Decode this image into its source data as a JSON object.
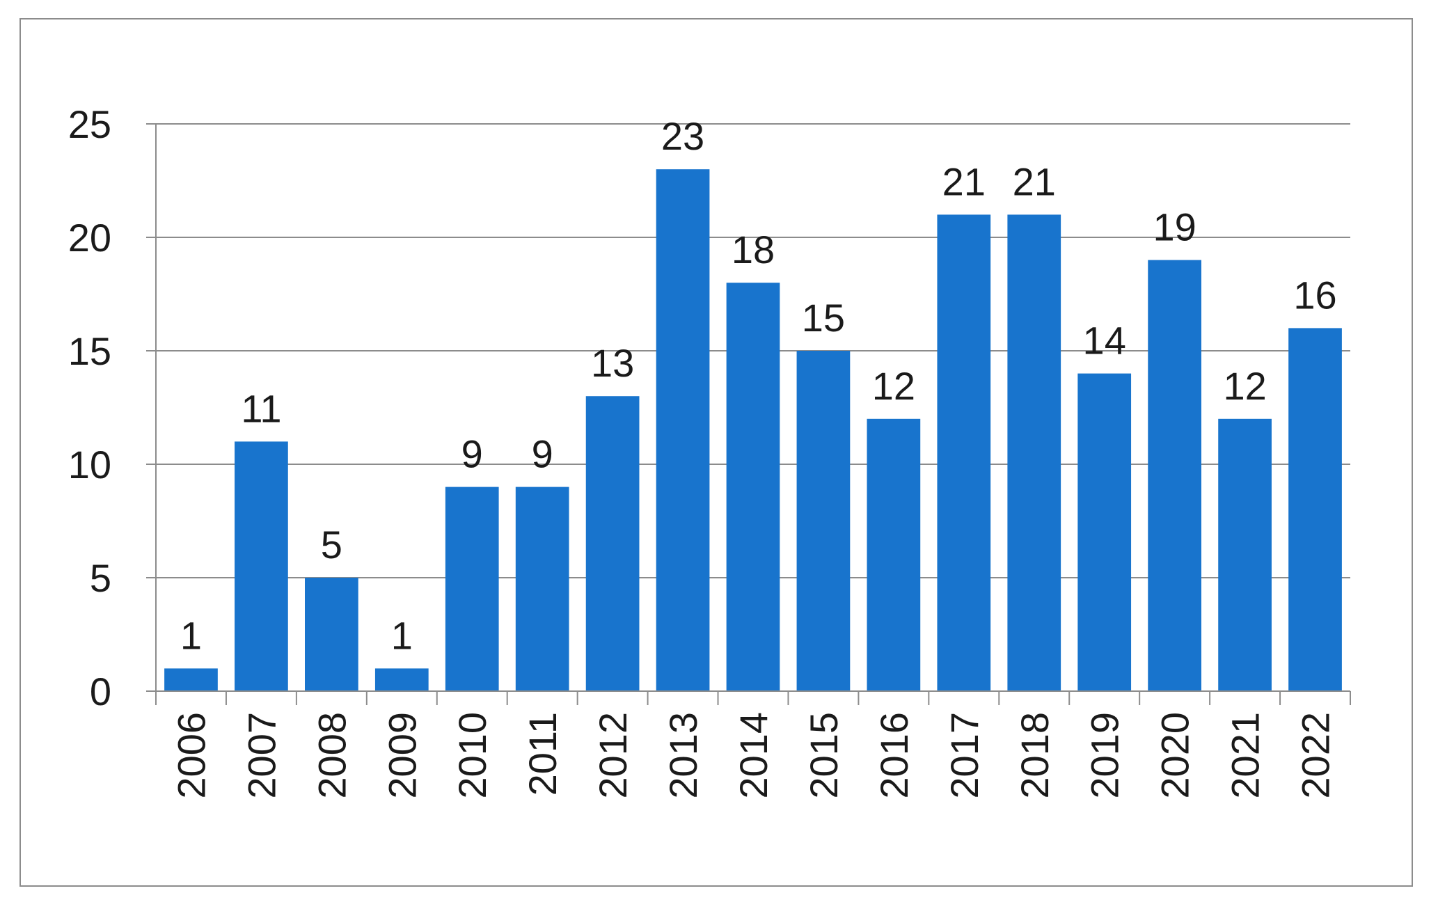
{
  "chart_data": {
    "type": "bar",
    "title": "",
    "xlabel": "",
    "ylabel": "",
    "categories": [
      "2006",
      "2007",
      "2008",
      "2009",
      "2010",
      "2011",
      "2012",
      "2013",
      "2014",
      "2015",
      "2016",
      "2017",
      "2018",
      "2019",
      "2020",
      "2021",
      "2022"
    ],
    "values": [
      1,
      11,
      5,
      1,
      9,
      9,
      13,
      23,
      18,
      15,
      12,
      21,
      21,
      14,
      19,
      12,
      16
    ],
    "ylim": [
      0,
      25
    ],
    "yticks": [
      0,
      5,
      10,
      15,
      20,
      25
    ],
    "grid": true,
    "legend": "none",
    "data_labels": true,
    "colors": {
      "bar": "#1874CD",
      "grid": "#8c8c8c",
      "axis": "#8c8c8c",
      "text": "#1a1a1a"
    }
  }
}
